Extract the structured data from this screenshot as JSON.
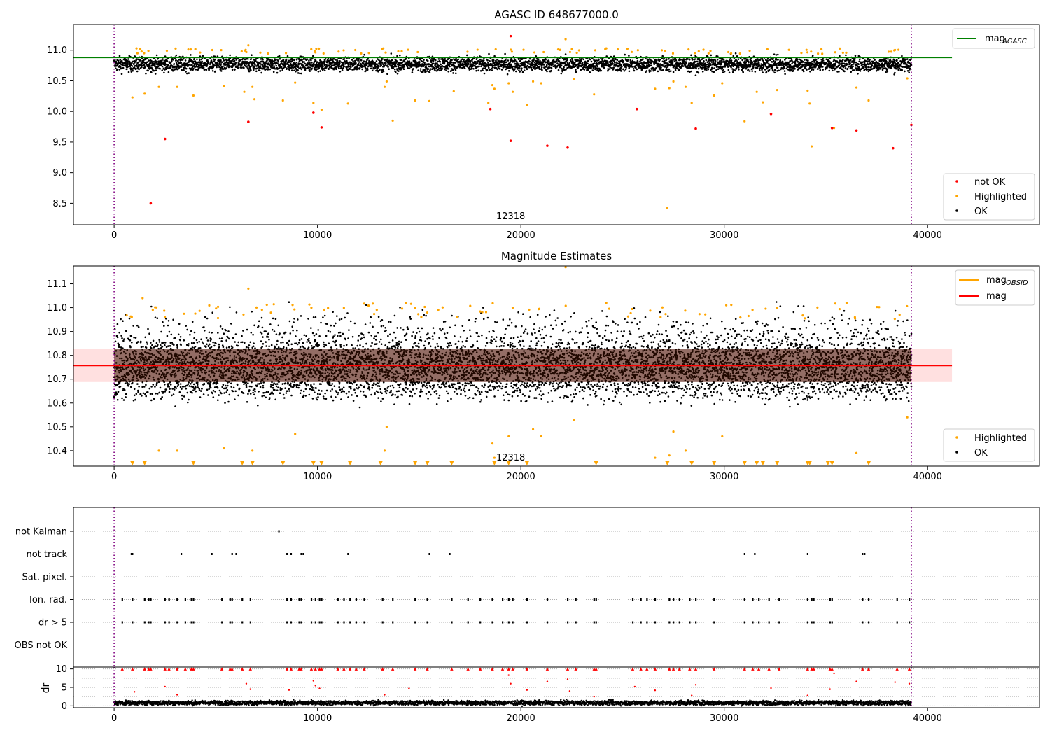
{
  "chart_data": [
    {
      "type": "scatter",
      "title": "AGASC ID 648677000.0",
      "xlim": [
        -2000,
        45500
      ],
      "ylim": [
        8.15,
        11.42
      ],
      "x_ticks": [
        0,
        10000,
        20000,
        30000,
        40000
      ],
      "x_tick_labels": [
        "0",
        "10000",
        "20000",
        "30000",
        "40000"
      ],
      "y_ticks": [
        8.5,
        9.0,
        9.5,
        10.0,
        10.5,
        11.0
      ],
      "y_tick_labels": [
        "8.5",
        "9.0",
        "9.5",
        "10.0",
        "10.5",
        "11.0"
      ],
      "grid": false,
      "annotation": {
        "text": "12318",
        "x": 19500,
        "y": 8.29
      },
      "vlines": [
        0,
        39200
      ],
      "hline": {
        "name": "mag_AGASC",
        "y": 10.88,
        "x_range": [
          -2000,
          41200
        ],
        "color": "#008000"
      },
      "legend_lines": {
        "position": "upper right",
        "entries": [
          {
            "label": "mag",
            "sub": "AGASC",
            "color": "#008000"
          }
        ]
      },
      "legend_points": {
        "position": "lower right",
        "entries": [
          {
            "label": "not OK",
            "color": "#ff0000"
          },
          {
            "label": "Highlighted",
            "color": "#ffa500"
          },
          {
            "label": "OK",
            "color": "#000000"
          }
        ]
      },
      "ok_band": {
        "x_range": [
          0,
          39200
        ],
        "y_center": 10.77,
        "y_spread": 0.12,
        "color": "#000000"
      },
      "series": [
        {
          "name": "not OK",
          "color": "#ff0000",
          "points": [
            [
              1800,
              8.5
            ],
            [
              2500,
              9.55
            ],
            [
              6600,
              9.83
            ],
            [
              9800,
              9.98
            ],
            [
              10200,
              9.74
            ],
            [
              18500,
              10.04
            ],
            [
              19500,
              9.52
            ],
            [
              19500,
              11.23
            ],
            [
              21300,
              9.44
            ],
            [
              22300,
              9.41
            ],
            [
              25700,
              10.04
            ],
            [
              28600,
              9.72
            ],
            [
              32300,
              9.96
            ],
            [
              35300,
              9.73
            ],
            [
              36500,
              9.69
            ],
            [
              38300,
              9.4
            ],
            [
              39200,
              9.78
            ]
          ]
        },
        {
          "name": "Highlighted",
          "color": "#ffa500",
          "points": [
            [
              900,
              10.23
            ],
            [
              1100,
              11.03
            ],
            [
              1500,
              10.29
            ],
            [
              2200,
              10.4
            ],
            [
              3100,
              10.4
            ],
            [
              3900,
              10.26
            ],
            [
              5400,
              10.41
            ],
            [
              6400,
              10.32
            ],
            [
              6600,
              11.08
            ],
            [
              6800,
              10.4
            ],
            [
              6900,
              10.2
            ],
            [
              8300,
              10.18
            ],
            [
              8900,
              10.47
            ],
            [
              9800,
              10.14
            ],
            [
              10200,
              10.03
            ],
            [
              11500,
              10.13
            ],
            [
              13300,
              10.4
            ],
            [
              13400,
              10.49
            ],
            [
              13700,
              9.85
            ],
            [
              14800,
              10.18
            ],
            [
              15500,
              10.17
            ],
            [
              16700,
              10.33
            ],
            [
              18400,
              10.14
            ],
            [
              18600,
              10.43
            ],
            [
              18700,
              10.37
            ],
            [
              19400,
              10.46
            ],
            [
              19600,
              10.32
            ],
            [
              20300,
              10.11
            ],
            [
              20600,
              10.49
            ],
            [
              21000,
              10.46
            ],
            [
              22200,
              11.18
            ],
            [
              22600,
              10.53
            ],
            [
              23600,
              10.28
            ],
            [
              24200,
              11.03
            ],
            [
              26600,
              10.37
            ],
            [
              27200,
              8.42
            ],
            [
              27300,
              10.38
            ],
            [
              27500,
              10.49
            ],
            [
              28100,
              10.4
            ],
            [
              28400,
              10.14
            ],
            [
              29500,
              10.26
            ],
            [
              29900,
              10.46
            ],
            [
              31000,
              9.84
            ],
            [
              31600,
              10.32
            ],
            [
              31900,
              10.15
            ],
            [
              32600,
              10.35
            ],
            [
              34100,
              10.34
            ],
            [
              34200,
              10.13
            ],
            [
              34300,
              9.43
            ],
            [
              35400,
              9.73
            ],
            [
              36500,
              10.39
            ],
            [
              37100,
              10.18
            ],
            [
              39000,
              10.54
            ]
          ]
        }
      ]
    },
    {
      "type": "scatter",
      "title": "Magnitude Estimates",
      "xlim": [
        -2000,
        45500
      ],
      "ylim": [
        10.335,
        11.175
      ],
      "x_ticks": [
        0,
        10000,
        20000,
        30000,
        40000
      ],
      "x_tick_labels": [
        "0",
        "10000",
        "20000",
        "30000",
        "40000"
      ],
      "y_ticks": [
        10.4,
        10.5,
        10.6,
        10.7,
        10.8,
        10.9,
        11.0,
        11.1
      ],
      "y_tick_labels": [
        "10.4",
        "10.5",
        "10.6",
        "10.7",
        "10.8",
        "10.9",
        "11.0",
        "11.1"
      ],
      "grid": false,
      "annotation": {
        "text": "12318",
        "x": 19500,
        "y": 10.37
      },
      "vlines": [
        0,
        39200
      ],
      "hline": {
        "name": "mag",
        "y": 10.757,
        "x_range": [
          -2000,
          41200
        ],
        "color": "#ff0000"
      },
      "band": {
        "y_low": 10.688,
        "y_high": 10.828,
        "x_range": [
          -2000,
          41200
        ],
        "color": "#ffe0e0"
      },
      "obsid_segments": {
        "color": "#ffa500",
        "points": [
          [
            0,
            10.76
          ],
          [
            39200,
            10.76
          ]
        ]
      },
      "legend_lines": {
        "position": "upper right",
        "entries": [
          {
            "label": "mag",
            "sub": "OBSID",
            "color": "#ffa500"
          },
          {
            "label": "mag",
            "sub": "",
            "color": "#ff0000"
          }
        ]
      },
      "legend_points": {
        "position": "lower right",
        "entries": [
          {
            "label": "Highlighted",
            "color": "#ffa500"
          },
          {
            "label": "OK",
            "color": "#000000"
          }
        ]
      },
      "ok_band": {
        "x_range": [
          0,
          39200
        ],
        "y_center": 10.755,
        "y_spread": 0.1,
        "color": "#000000"
      },
      "series": [
        {
          "name": "Highlighted",
          "color": "#ffa500",
          "points": [
            [
              1400,
              11.04
            ],
            [
              2200,
              10.4
            ],
            [
              3100,
              10.4
            ],
            [
              5400,
              10.41
            ],
            [
              6600,
              11.08
            ],
            [
              6800,
              10.4
            ],
            [
              8900,
              10.47
            ],
            [
              9700,
              11.0
            ],
            [
              13300,
              10.4
            ],
            [
              13400,
              10.5
            ],
            [
              14800,
              11.0
            ],
            [
              18600,
              10.43
            ],
            [
              18700,
              10.37
            ],
            [
              19400,
              10.46
            ],
            [
              19600,
              11.0
            ],
            [
              20600,
              10.49
            ],
            [
              21000,
              10.46
            ],
            [
              22200,
              11.17
            ],
            [
              22600,
              10.53
            ],
            [
              24200,
              11.02
            ],
            [
              26600,
              10.37
            ],
            [
              27300,
              10.38
            ],
            [
              27500,
              10.48
            ],
            [
              28100,
              10.4
            ],
            [
              29900,
              10.46
            ],
            [
              30100,
              11.01
            ],
            [
              32600,
              11.0
            ],
            [
              36500,
              10.39
            ],
            [
              39000,
              10.54
            ]
          ]
        },
        {
          "name": "Highlighted (below range)",
          "color": "#ffa500",
          "marker": "triangle-down",
          "x": [
            900,
            1500,
            3900,
            6300,
            6800,
            8300,
            9800,
            10200,
            11600,
            13100,
            14800,
            15400,
            16600,
            18700,
            19400,
            20300,
            23700,
            27200,
            28400,
            29500,
            31000,
            31600,
            31900,
            32600,
            34100,
            34200,
            35100,
            35300,
            37100
          ]
        }
      ]
    },
    {
      "type": "scatter",
      "title": "",
      "xlim": [
        -2000,
        45500
      ],
      "categories": [
        "not Kalman",
        "not track",
        "Sat. pixel.",
        "Ion. rad.",
        "dr > 5",
        "OBS not OK"
      ],
      "vlines": [
        0,
        39200
      ],
      "flags": {
        "not Kalman": [
          8100
        ],
        "not track": [
          850,
          900,
          3300,
          4800,
          5800,
          6000,
          8500,
          8700,
          9200,
          9300,
          11500,
          15500,
          16500,
          31000,
          31500,
          34100,
          36800,
          36900
        ],
        "Sat. pixel.": [],
        "Ion. rad.": [
          400,
          900,
          1500,
          1700,
          1800,
          2500,
          2700,
          3100,
          3500,
          3800,
          3900,
          5300,
          5700,
          5800,
          6300,
          6700,
          8500,
          8700,
          9100,
          9200,
          9700,
          9900,
          10100,
          10200,
          11000,
          11300,
          11600,
          11900,
          12300,
          13200,
          13700,
          14800,
          15400,
          16600,
          17400,
          18000,
          18600,
          19100,
          19400,
          19600,
          20300,
          21300,
          22300,
          22700,
          23600,
          23700,
          25500,
          25900,
          26200,
          26600,
          27300,
          27500,
          27800,
          28300,
          28600,
          29500,
          31000,
          31400,
          31700,
          32200,
          32700,
          34100,
          34300,
          34400,
          35200,
          35300,
          36800,
          37100,
          38500,
          39100
        ],
        "dr > 5": [
          400,
          900,
          1500,
          1700,
          1800,
          2500,
          2700,
          3100,
          3500,
          3800,
          3900,
          5300,
          5700,
          5800,
          6300,
          6700,
          8500,
          8700,
          9100,
          9200,
          9700,
          9900,
          10100,
          10200,
          11000,
          11300,
          11600,
          11900,
          12300,
          13200,
          13700,
          14800,
          15400,
          16600,
          17400,
          18000,
          18600,
          19100,
          19400,
          19600,
          20300,
          21300,
          22300,
          22700,
          23600,
          23700,
          25500,
          25900,
          26200,
          26600,
          27300,
          27500,
          27800,
          28300,
          28600,
          29500,
          31000,
          31400,
          31700,
          32200,
          32700,
          34100,
          34300,
          34400,
          35200,
          35300,
          36800,
          37100,
          38500,
          39100
        ],
        "OBS not OK": []
      }
    },
    {
      "type": "scatter",
      "title": "",
      "ylabel": "dr",
      "xlim": [
        -2000,
        45500
      ],
      "ylim": [
        -0.5,
        10.5
      ],
      "x_ticks": [
        0,
        10000,
        20000,
        30000,
        40000
      ],
      "x_tick_labels": [
        "0",
        "10000",
        "20000",
        "30000",
        "40000"
      ],
      "y_ticks": [
        0,
        5,
        10
      ],
      "y_tick_labels": [
        "0",
        "5",
        "10"
      ],
      "grid": true,
      "vlines": [
        0,
        39200
      ],
      "ok_band": {
        "x_range": [
          0,
          39200
        ],
        "y_center": 0.8,
        "y_spread": 0.6,
        "color": "#000000"
      },
      "series": [
        {
          "name": "dr above 10",
          "color": "#ff0000",
          "marker": "triangle-up",
          "x": [
            400,
            900,
            1500,
            1700,
            1800,
            2500,
            2700,
            3100,
            3500,
            3800,
            3900,
            5300,
            5700,
            5800,
            6300,
            6700,
            8500,
            8700,
            9100,
            9200,
            9700,
            9900,
            10100,
            10200,
            11000,
            11300,
            11600,
            11900,
            12300,
            13200,
            13700,
            14800,
            15400,
            16600,
            17400,
            18000,
            18600,
            19100,
            19400,
            19600,
            20300,
            21300,
            22300,
            22700,
            23600,
            23700,
            25500,
            25900,
            26200,
            26600,
            27300,
            27500,
            27800,
            28300,
            28600,
            29500,
            31000,
            31400,
            31700,
            32200,
            32700,
            34100,
            34300,
            34400,
            35200,
            35300,
            36800,
            37100,
            38500,
            39100
          ]
        },
        {
          "name": "dr > 5",
          "color": "#ff0000",
          "points": [
            [
              1000,
              3.8
            ],
            [
              2500,
              5.2
            ],
            [
              3100,
              3.0
            ],
            [
              6500,
              6.0
            ],
            [
              6700,
              4.5
            ],
            [
              8600,
              4.3
            ],
            [
              9800,
              6.8
            ],
            [
              9900,
              5.5
            ],
            [
              10100,
              4.7
            ],
            [
              13300,
              3.0
            ],
            [
              14500,
              4.7
            ],
            [
              19400,
              8.3
            ],
            [
              19500,
              6.0
            ],
            [
              20300,
              4.3
            ],
            [
              21300,
              6.6
            ],
            [
              22300,
              7.2
            ],
            [
              22400,
              4.0
            ],
            [
              23600,
              2.5
            ],
            [
              25600,
              5.2
            ],
            [
              26600,
              4.2
            ],
            [
              28400,
              2.8
            ],
            [
              28600,
              5.7
            ],
            [
              32300,
              4.8
            ],
            [
              34100,
              2.8
            ],
            [
              35200,
              4.5
            ],
            [
              35400,
              8.8
            ],
            [
              36500,
              6.6
            ],
            [
              38400,
              6.4
            ],
            [
              39100,
              6.0
            ]
          ]
        }
      ]
    }
  ]
}
